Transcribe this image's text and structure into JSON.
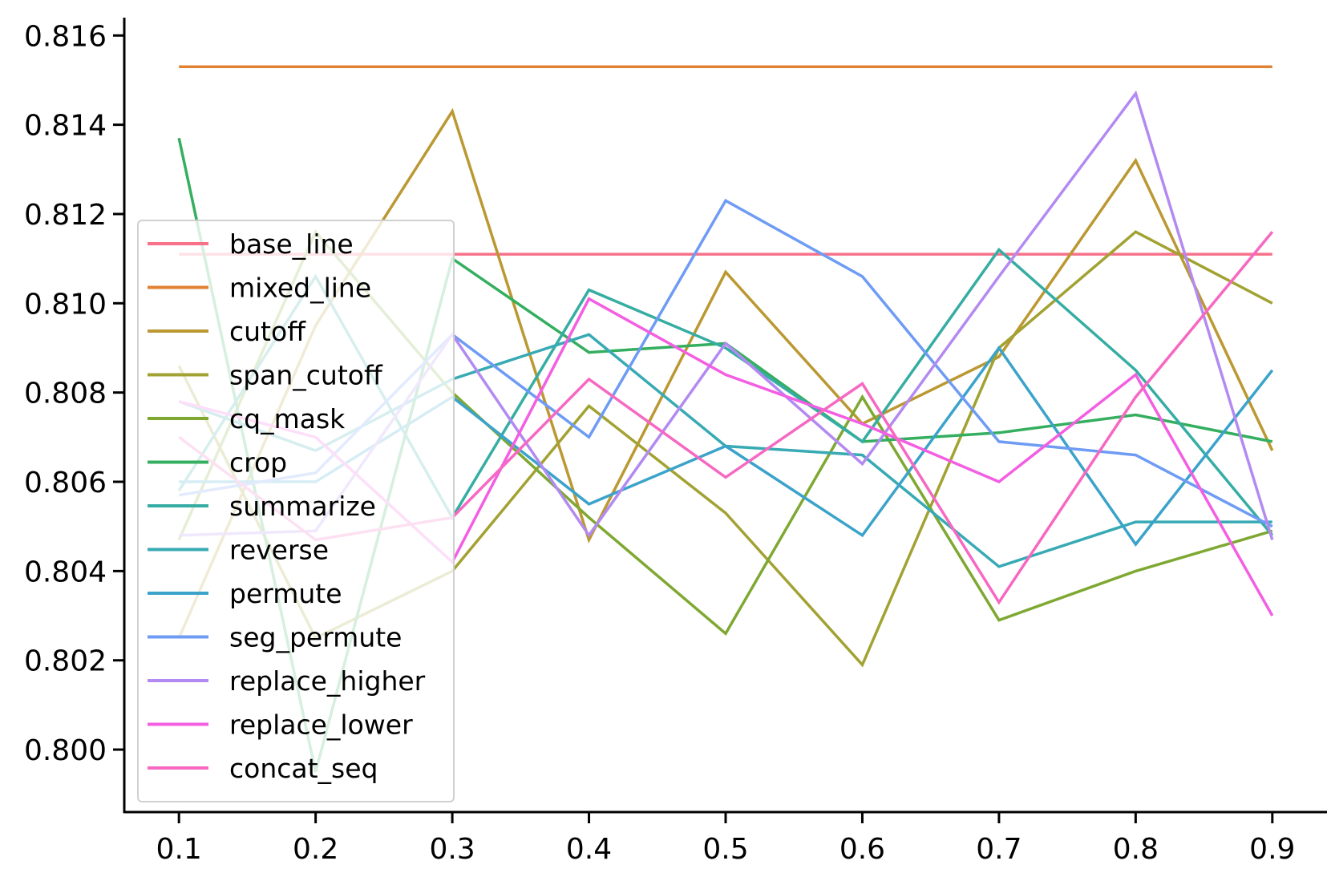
{
  "chart_data": {
    "type": "line",
    "title": "",
    "xlabel": "",
    "ylabel": "",
    "x": [
      0.1,
      0.2,
      0.3,
      0.4,
      0.5,
      0.6,
      0.7,
      0.8,
      0.9
    ],
    "x_tick_labels": [
      "0.1",
      "0.2",
      "0.3",
      "0.4",
      "0.5",
      "0.6",
      "0.7",
      "0.8",
      "0.9"
    ],
    "y_ticks": [
      0.8,
      0.802,
      0.804,
      0.806,
      0.808,
      0.81,
      0.812,
      0.814,
      0.816
    ],
    "y_tick_labels": [
      "0.800",
      "0.802",
      "0.804",
      "0.806",
      "0.808",
      "0.810",
      "0.812",
      "0.814",
      "0.816"
    ],
    "xlim": [
      0.06,
      0.94
    ],
    "ylim": [
      0.7986,
      0.8164
    ],
    "grid": false,
    "legend_position": "left",
    "series": [
      {
        "name": "base_line",
        "color": "#f77189",
        "values": [
          0.8111,
          0.8111,
          0.8111,
          0.8111,
          0.8111,
          0.8111,
          0.8111,
          0.8111,
          0.8111
        ]
      },
      {
        "name": "mixed_line",
        "color": "#e18133",
        "values": [
          0.8153,
          0.8153,
          0.8153,
          0.8153,
          0.8153,
          0.8153,
          0.8153,
          0.8153,
          0.8153
        ]
      },
      {
        "name": "cutoff",
        "color": "#bb9832",
        "values": [
          0.8025,
          0.8095,
          0.8143,
          0.8047,
          0.8107,
          0.8073,
          0.8088,
          0.8132,
          0.8067
        ]
      },
      {
        "name": "span_cutoff",
        "color": "#a2a233",
        "values": [
          0.8086,
          0.8025,
          0.804,
          0.8077,
          0.8053,
          0.8019,
          0.809,
          0.8116,
          0.81
        ]
      },
      {
        "name": "cq_mask",
        "color": "#7ea832",
        "values": [
          0.8047,
          0.8116,
          0.808,
          0.8052,
          0.8026,
          0.8079,
          0.8029,
          0.804,
          0.8049
        ]
      },
      {
        "name": "crop",
        "color": "#34ae5f",
        "values": [
          0.8137,
          0.7995,
          0.811,
          0.8089,
          0.8091,
          0.8069,
          0.8071,
          0.8075,
          0.8069
        ]
      },
      {
        "name": "summarize",
        "color": "#36ada3",
        "values": [
          0.8058,
          0.8106,
          0.8052,
          0.8103,
          0.809,
          0.8069,
          0.8112,
          0.8085,
          0.8048
        ]
      },
      {
        "name": "reverse",
        "color": "#38aab4",
        "values": [
          0.8078,
          0.8067,
          0.8083,
          0.8093,
          0.8068,
          0.8066,
          0.8041,
          0.8051,
          0.8051
        ]
      },
      {
        "name": "permute",
        "color": "#3ba3ca",
        "values": [
          0.806,
          0.806,
          0.8079,
          0.8055,
          0.8068,
          0.8048,
          0.809,
          0.8046,
          0.8085
        ]
      },
      {
        "name": "seg_permute",
        "color": "#6e9bf4",
        "values": [
          0.8057,
          0.8062,
          0.8093,
          0.807,
          0.8123,
          0.8106,
          0.8069,
          0.8066,
          0.805
        ]
      },
      {
        "name": "replace_higher",
        "color": "#b38af1",
        "values": [
          0.8048,
          0.8049,
          0.8093,
          0.8048,
          0.8091,
          0.8064,
          0.8106,
          0.8147,
          0.8047
        ]
      },
      {
        "name": "replace_lower",
        "color": "#f35ee2",
        "values": [
          0.8078,
          0.807,
          0.8042,
          0.8101,
          0.8084,
          0.8073,
          0.806,
          0.8084,
          0.803
        ]
      },
      {
        "name": "concat_seq",
        "color": "#f668c2",
        "values": [
          0.807,
          0.8047,
          0.8052,
          0.8083,
          0.8061,
          0.8082,
          0.8033,
          0.8079,
          0.8116
        ]
      }
    ]
  }
}
